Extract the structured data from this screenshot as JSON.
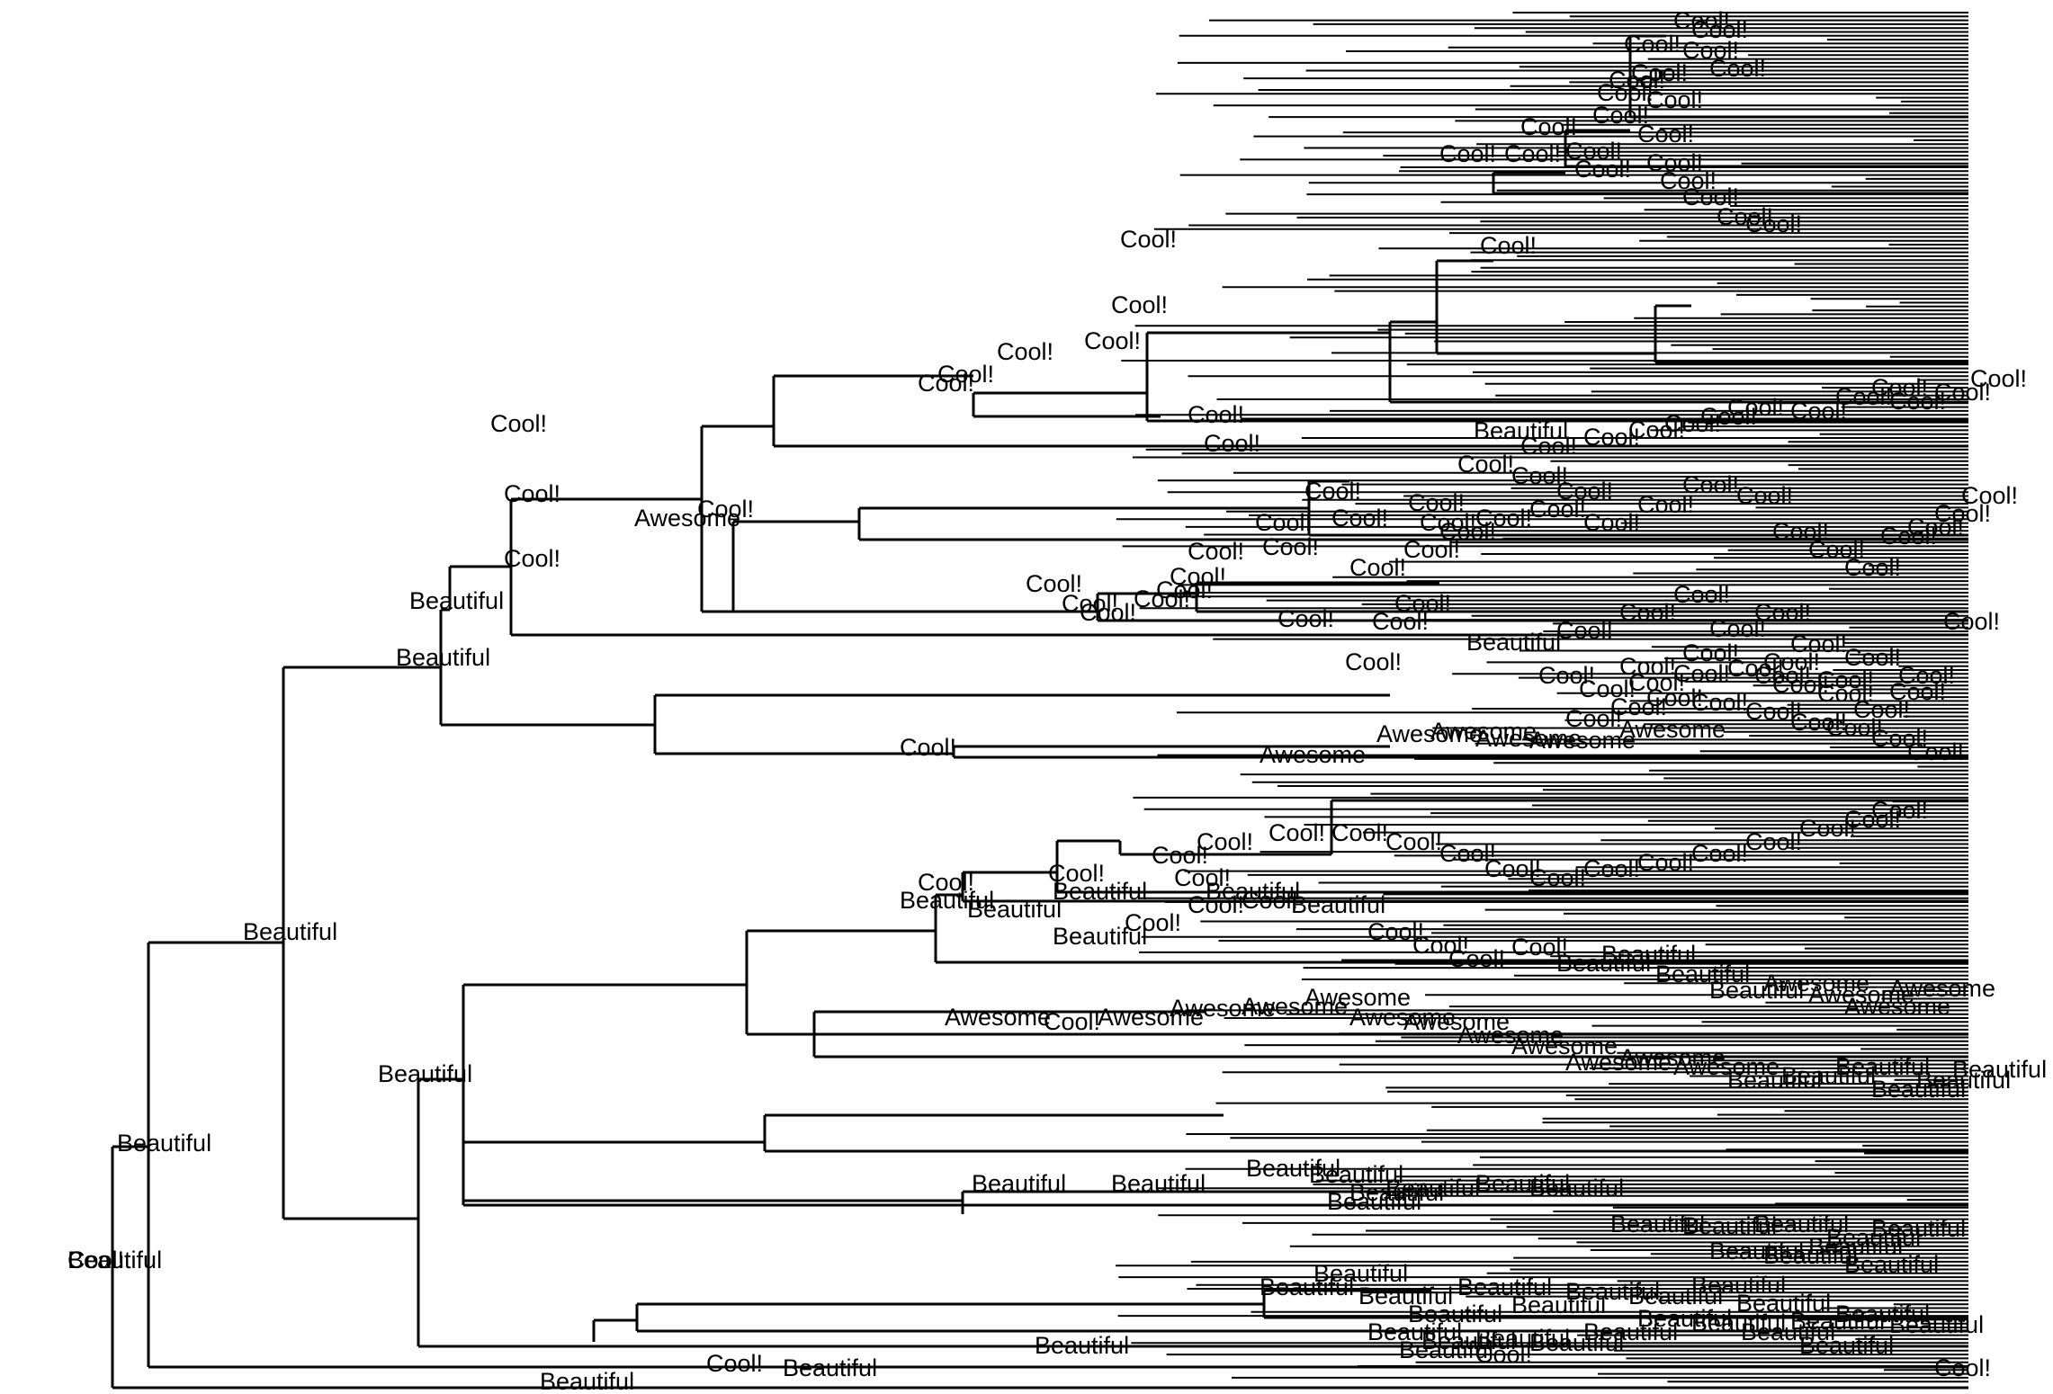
{
  "title": "",
  "colors": {
    "background": "#ffffff",
    "branch": "#000000",
    "label": "#000000"
  },
  "node_labels": [
    "Beautiful",
    "Beautiful",
    "Beautiful",
    "Beautiful",
    "Beautiful",
    "Beautiful",
    "Cool!",
    "Cool!",
    "Cool!",
    "Cool!",
    "Cool!",
    "Cool!",
    "Cool!",
    "Cool!",
    "Cool!",
    "Cool!",
    "Cool!",
    "Cool!",
    "Cool!",
    "Cool!",
    "Cool!",
    "Cool!",
    "Cool!",
    "Cool!",
    "Cool!",
    "Cool!",
    "Cool!",
    "Cool!",
    "Cool!",
    "Cool!",
    "Cool!",
    "Cool!",
    "Cool!",
    "Cool!",
    "Cool!",
    "Cool!",
    "Cool!",
    "Cool!",
    "Cool!",
    "Cool!",
    "Cool!",
    "Cool!",
    "Cool!",
    "Cool!",
    "Cool!",
    "Cool!",
    "Beautiful",
    "Cool!",
    "Cool!",
    "Cool!",
    "Cool!",
    "Cool!",
    "Cool!",
    "Cool!",
    "Cool!",
    "Cool!",
    "Cool!",
    "Cool!",
    "Cool!",
    "Cool!",
    "Cool!",
    "Cool!",
    "Cool!",
    "Cool!",
    "Cool!",
    "Cool!",
    "Cool!",
    "Cool!",
    "Cool!",
    "Cool!",
    "Cool!",
    "Cool!",
    "Cool!",
    "Cool!",
    "Cool!",
    "Cool!",
    "Cool!",
    "Cool!",
    "Cool!",
    "Cool!",
    "Cool!",
    "Cool!",
    "Cool!",
    "Cool!",
    "Cool!",
    "Cool!",
    "Cool!",
    "Cool!",
    "Cool!",
    "Cool!",
    "Beautiful",
    "Cool!",
    "Cool!",
    "Cool!",
    "Cool!",
    "Cool!",
    "Cool!",
    "Cool!",
    "Cool!",
    "Cool!",
    "Cool!",
    "Cool!",
    "Cool!",
    "Cool!",
    "Awesome",
    "Awesome",
    "Awesome",
    "Awesome",
    "Awesome",
    "Awesome",
    "Awesome",
    "Cool!",
    "Cool!",
    "Cool!",
    "Cool!",
    "Cool!",
    "Cool!",
    "Cool!",
    "Cool!",
    "Cool!",
    "Cool!",
    "Cool!",
    "Cool!",
    "Cool!",
    "Cool!",
    "Cool!",
    "Cool!",
    "Cool!",
    "Cool!",
    "Cool!",
    "Cool!",
    "Beautiful",
    "Beautiful",
    "Beautiful",
    "Cool!",
    "Beautiful",
    "Beautiful",
    "Beautiful",
    "Cool!",
    "Cool!",
    "Cool!",
    "Cool!",
    "Cool!",
    "Cool!",
    "Cool!",
    "Cool!",
    "Cool!",
    "Cool!",
    "Cool!",
    "Cool!",
    "Cool!",
    "Cool!",
    "Cool!",
    "Cool!",
    "Cool!",
    "Cool!",
    "Cool!",
    "Cool!",
    "Cool!",
    "Cool!",
    "Cool!",
    "Cool!",
    "Beautiful",
    "Beautiful",
    "Beautiful",
    "Beautiful",
    "Awesome",
    "Awesome",
    "Awesome",
    "Awesome",
    "Awesome",
    "Awesome",
    "Awesome",
    "Awesome",
    "Awesome",
    "Awesome",
    "Awesome",
    "Awesome",
    "Awesome",
    "Awesome",
    "Awesome",
    "Awesome",
    "Beautiful",
    "Beautiful",
    "Beautiful",
    "Beautiful",
    "Beautiful",
    "Beautiful",
    "Beautiful",
    "Beautiful",
    "Beautiful",
    "Beautiful",
    "Beautiful",
    "Beautiful",
    "Beautiful",
    "Beautiful",
    "Beautiful",
    "Beautiful",
    "Beautiful",
    "Beautiful",
    "Beautiful",
    "Beautiful",
    "Beautiful",
    "Beautiful",
    "Beautiful",
    "Beautiful",
    "Beautiful",
    "Beautiful",
    "Beautiful",
    "Beautiful",
    "Beautiful",
    "Beautiful",
    "Beautiful",
    "Beautiful",
    "Beautiful",
    "Beautiful",
    "Beautiful",
    "Beautiful",
    "Beautiful",
    "Beautiful",
    "Beautiful",
    "Beautiful",
    "Beautiful",
    "Beautiful",
    "Beautiful",
    "Beautiful",
    "Beautiful",
    "Beautiful",
    "Beautiful",
    "Cool!",
    "Cool!",
    "Beautiful",
    "Beautiful",
    "Cool!",
    "Beautiful",
    "Cool!"
  ]
}
